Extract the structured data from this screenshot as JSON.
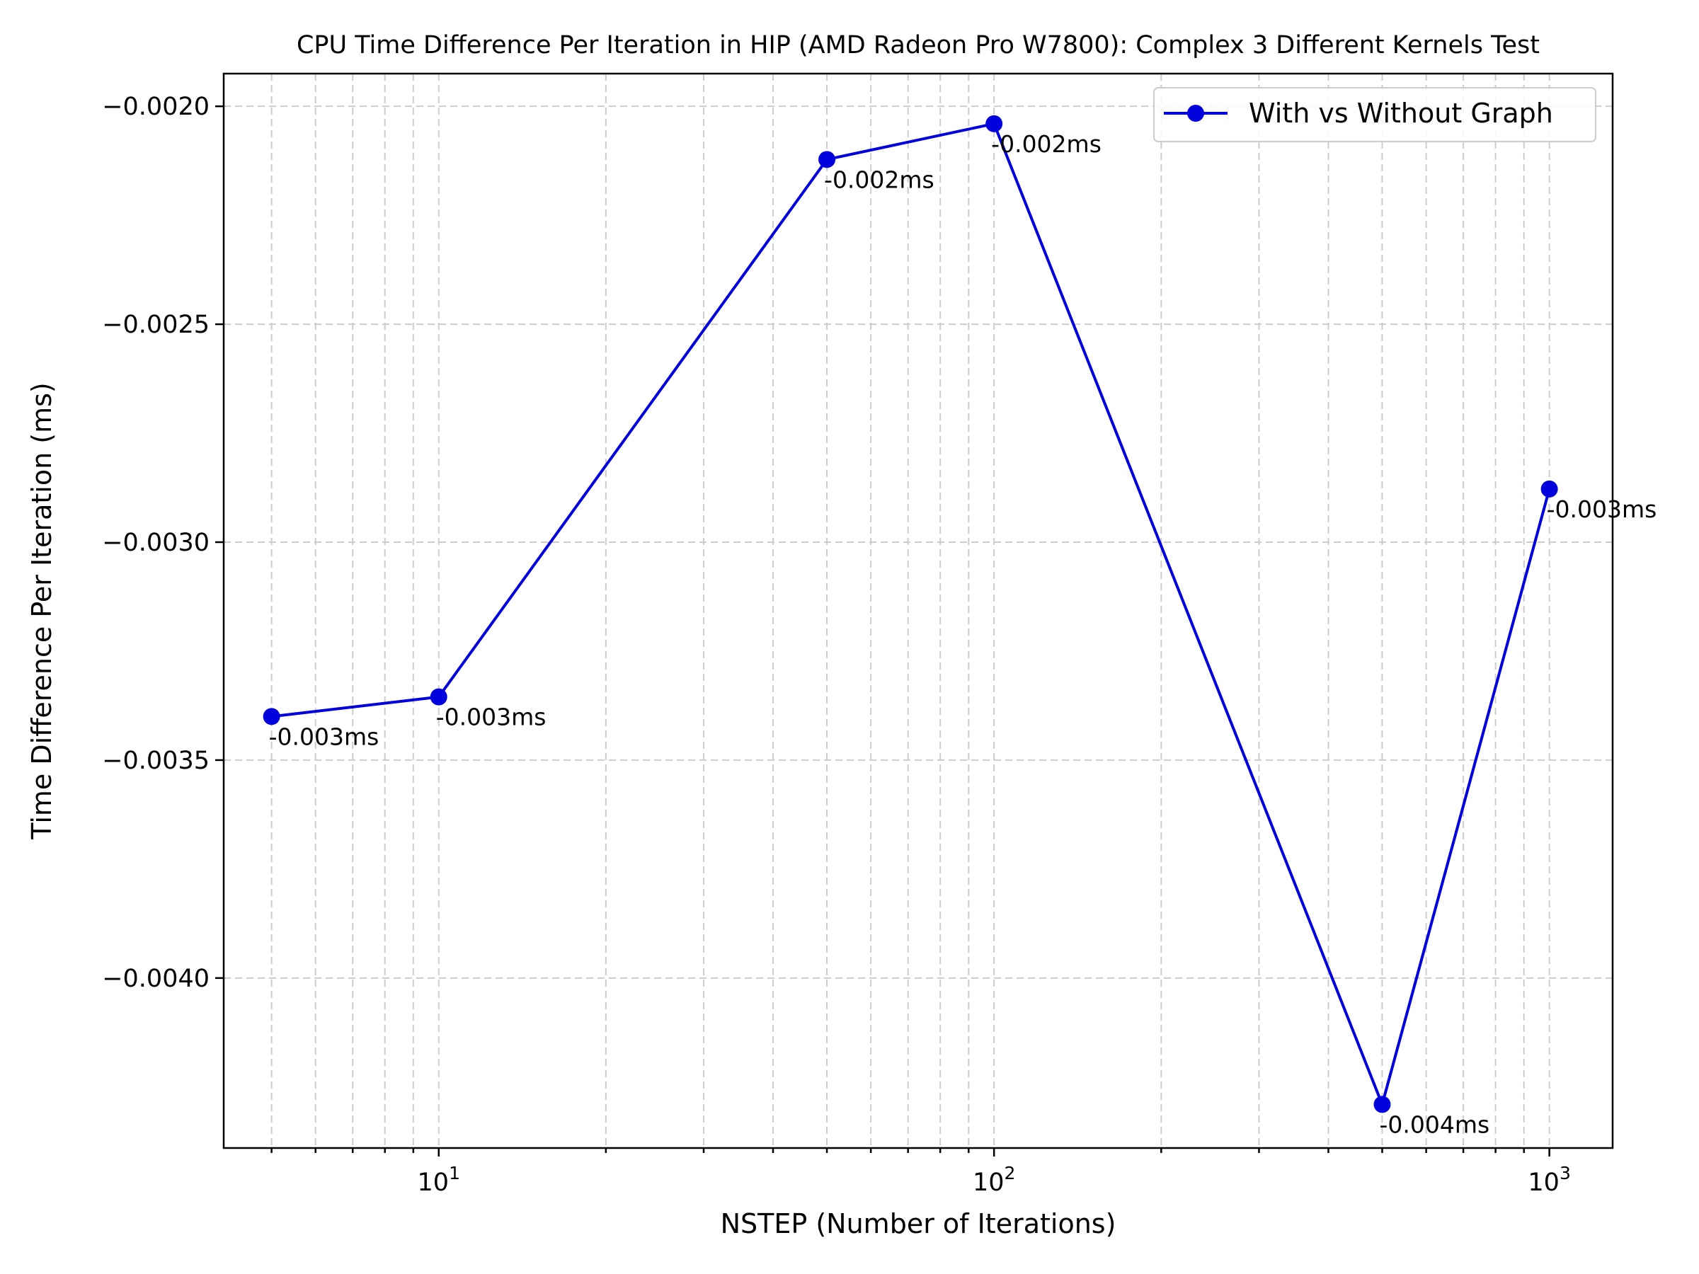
{
  "chart_data": {
    "type": "line",
    "title": "CPU Time Difference Per Iteration in HIP (AMD Radeon Pro W7800): Complex 3 Different Kernels Test",
    "xlabel": "NSTEP (Number of Iterations)",
    "ylabel": "Time Difference Per Iteration (ms)",
    "x_scale": "log",
    "xlim": [
      4.1,
      1300
    ],
    "ylim": [
      -0.00439,
      -0.001925
    ],
    "x_ticks": [
      {
        "value": 10,
        "base": "10",
        "exp": "1"
      },
      {
        "value": 100,
        "base": "10",
        "exp": "2"
      },
      {
        "value": 1000,
        "base": "10",
        "exp": "3"
      }
    ],
    "y_ticks": [
      {
        "value": -0.002,
        "label": "−0.0020"
      },
      {
        "value": -0.0025,
        "label": "−0.0025"
      },
      {
        "value": -0.003,
        "label": "−0.0030"
      },
      {
        "value": -0.0035,
        "label": "−0.0035"
      },
      {
        "value": -0.004,
        "label": "−0.0040"
      }
    ],
    "grid": true,
    "legend_position": "top-right",
    "series": [
      {
        "name": "With vs Without Graph",
        "color": "#0000dd",
        "marker": "circle",
        "x": [
          5,
          10,
          50,
          100,
          500,
          1000
        ],
        "y": [
          -0.0034,
          -0.003355,
          -0.002122,
          -0.00204,
          -0.00429,
          -0.002878
        ],
        "labels": [
          "-0.003ms",
          "-0.003ms",
          "-0.002ms",
          "-0.002ms",
          "-0.004ms",
          "-0.003ms"
        ]
      }
    ]
  }
}
